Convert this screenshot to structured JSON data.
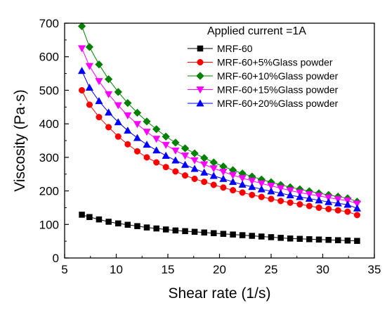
{
  "chart_data": {
    "type": "line",
    "title": "",
    "xlabel": "Shear rate (1/s)",
    "ylabel": "Viscosity (Pa·s)",
    "xlim": [
      5,
      35
    ],
    "ylim": [
      0,
      700
    ],
    "xticks": [
      5,
      10,
      15,
      20,
      25,
      30,
      35
    ],
    "yticks": [
      0,
      100,
      200,
      300,
      400,
      500,
      600,
      700
    ],
    "legend_title": "Applied current =1A",
    "legend_position": "top-right",
    "grid": false,
    "x": [
      6.67,
      7.41,
      8.33,
      9.26,
      10.19,
      11.11,
      12.04,
      12.96,
      13.89,
      14.81,
      15.74,
      16.67,
      17.59,
      18.52,
      19.44,
      20.37,
      21.3,
      22.22,
      23.15,
      24.07,
      25.0,
      25.93,
      26.85,
      27.78,
      28.7,
      29.63,
      30.56,
      31.48,
      32.41,
      33.33
    ],
    "series": [
      {
        "name": "MRF-60",
        "color": "#000000",
        "marker": "square",
        "values": [
          129,
          122,
          115,
          108,
          103,
          99,
          95,
          91,
          88,
          85,
          82,
          80,
          78,
          76,
          74,
          72,
          70,
          68,
          66,
          64,
          62,
          60,
          58,
          57,
          56,
          55,
          54,
          53,
          52,
          51
        ]
      },
      {
        "name": "MRF-60+5%Glass powder",
        "color": "#ff0000",
        "marker": "circle",
        "values": [
          500,
          457,
          420,
          390,
          362,
          339,
          318,
          300,
          285,
          271,
          258,
          246,
          236,
          227,
          218,
          210,
          202,
          195,
          188,
          182,
          176,
          170,
          165,
          160,
          155,
          150,
          146,
          142,
          138,
          128
        ]
      },
      {
        "name": "MRF-60+10%Glass powder",
        "color": "#008000",
        "marker": "diamond",
        "values": [
          691,
          629,
          577,
          533,
          495,
          462,
          433,
          407,
          384,
          362,
          344,
          327,
          312,
          298,
          285,
          273,
          262,
          252,
          243,
          234,
          226,
          218,
          211,
          205,
          199,
          193,
          188,
          183,
          178,
          168
        ]
      },
      {
        "name": "MRF-60+15%Glass powder",
        "color": "#ff00ff",
        "marker": "triangle-down",
        "values": [
          625,
          572,
          527,
          488,
          455,
          425,
          399,
          376,
          355,
          337,
          320,
          305,
          291,
          279,
          267,
          257,
          247,
          238,
          230,
          222,
          215,
          208,
          201,
          195,
          190,
          185,
          180,
          175,
          171,
          162
        ]
      },
      {
        "name": "MRF-60+20%Glass powder",
        "color": "#0000ff",
        "marker": "triangle-up",
        "values": [
          558,
          508,
          468,
          434,
          405,
          380,
          358,
          338,
          321,
          305,
          291,
          278,
          266,
          255,
          245,
          236,
          227,
          219,
          212,
          205,
          199,
          193,
          187,
          182,
          177,
          172,
          167,
          163,
          159,
          148
        ]
      }
    ]
  }
}
